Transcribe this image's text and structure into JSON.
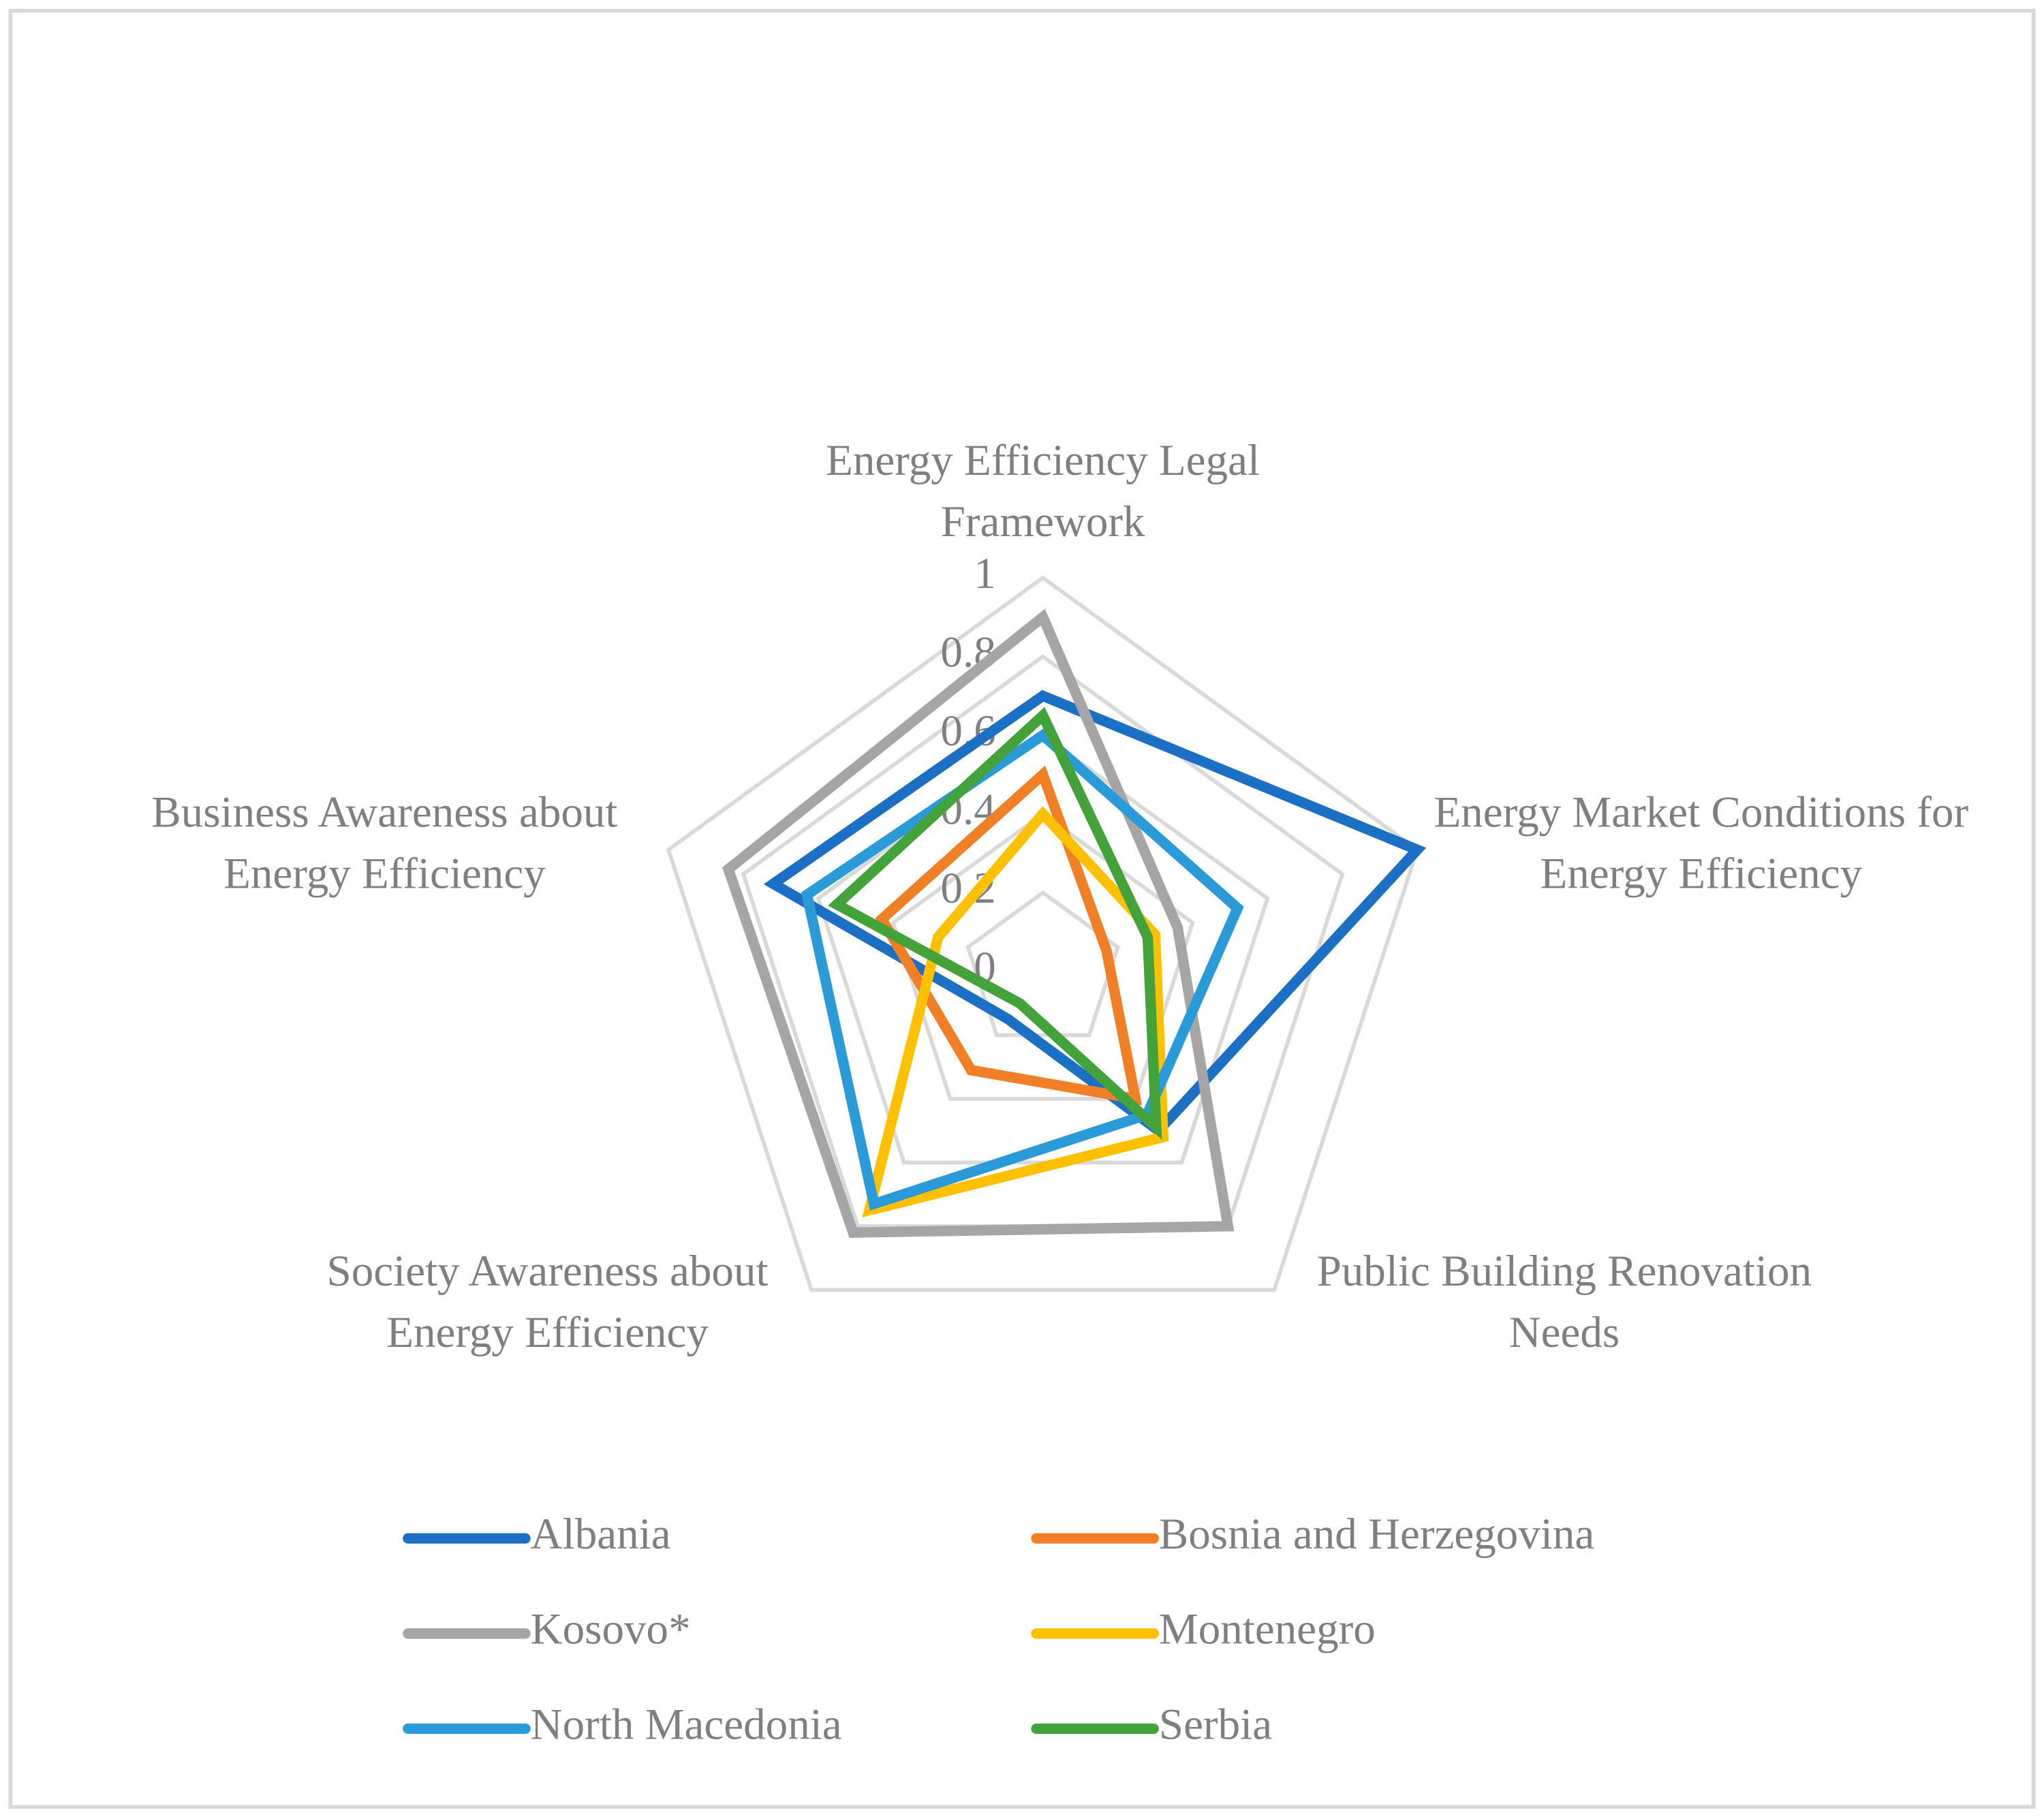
{
  "chart_data": {
    "type": "radar",
    "categories": [
      "Energy Efficiency Legal Framework",
      "Energy Market Conditions for Energy Efficiency",
      "Public Building Renovation Needs",
      "Society Awareness about Energy Efficiency",
      "Business Awareness about Energy Efficiency"
    ],
    "ylim": [
      0,
      1
    ],
    "yticks": [
      0,
      0.2,
      0.4,
      0.6,
      0.8,
      1
    ],
    "series": [
      {
        "name": "Albania",
        "color": "#1b6fc4",
        "values": [
          0.7,
          1.0,
          0.5,
          0.15,
          0.72
        ]
      },
      {
        "name": "Bosnia and Herzegovina",
        "color": "#f07f26",
        "values": [
          0.5,
          0.17,
          0.4,
          0.31,
          0.43
        ]
      },
      {
        "name": "Kosovo*",
        "color": "#a5a5a5",
        "values": [
          0.9,
          0.36,
          0.8,
          0.82,
          0.84
        ]
      },
      {
        "name": "Montenegro",
        "color": "#ffc000",
        "values": [
          0.4,
          0.3,
          0.52,
          0.75,
          0.28
        ]
      },
      {
        "name": "North Macedonia",
        "color": "#2a9ad8",
        "values": [
          0.6,
          0.52,
          0.45,
          0.73,
          0.63
        ]
      },
      {
        "name": "Serbia",
        "color": "#43a33a",
        "values": [
          0.65,
          0.28,
          0.49,
          0.1,
          0.55
        ]
      }
    ],
    "legend": "bottom"
  }
}
